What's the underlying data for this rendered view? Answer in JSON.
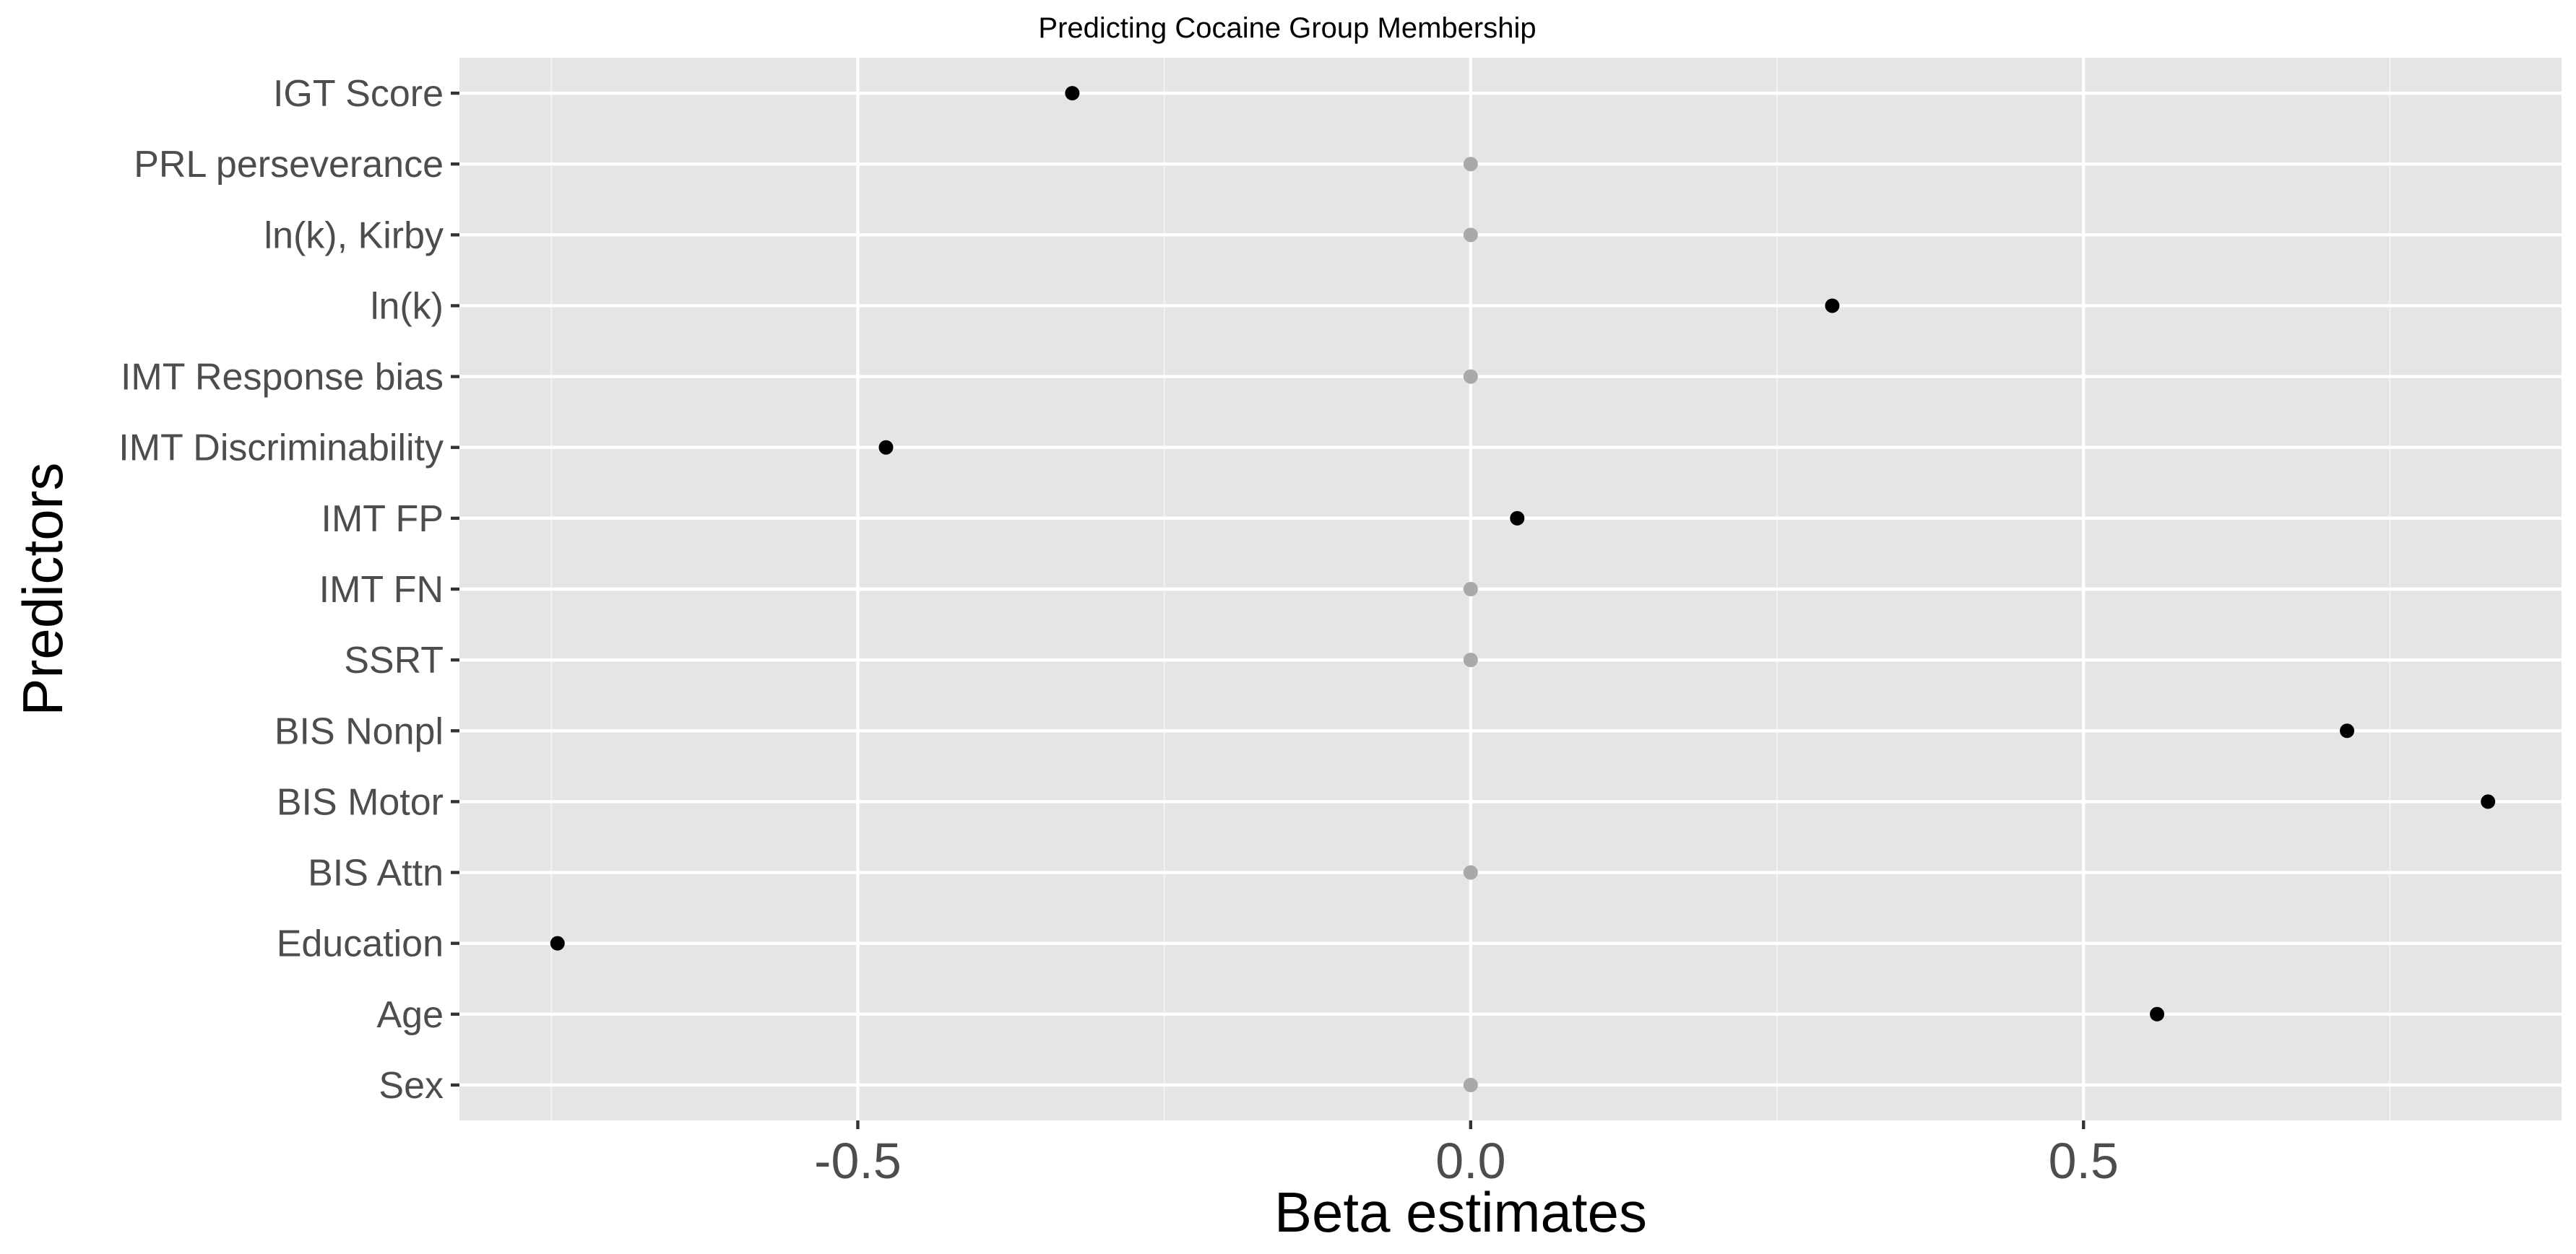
{
  "chart_data": {
    "type": "scatter",
    "title": "Predicting Cocaine Group Membership",
    "xlabel": "Beta estimates",
    "ylabel": "Predictors",
    "xlim": [
      -0.825,
      0.89
    ],
    "xticks": [
      -0.5,
      0.0,
      0.5
    ],
    "xtick_labels": [
      "-0.5",
      "0.0",
      "0.5"
    ],
    "grid": true,
    "legend": "none",
    "categories": [
      "IGT Score",
      "PRL perseverance",
      "ln(k), Kirby",
      "ln(k)",
      "IMT Response bias",
      "IMT Discriminability",
      "IMT FP",
      "IMT FN",
      "SSRT",
      "BIS Nonpl",
      "BIS Motor",
      "BIS Attn",
      "Education",
      "Age",
      "Sex"
    ],
    "values": [
      -0.325,
      0.0,
      0.0,
      0.295,
      0.0,
      -0.477,
      0.038,
      0.0,
      0.0,
      0.715,
      0.83,
      0.0,
      -0.745,
      0.56,
      0.0
    ],
    "point_colors": {
      "nonzero": "#000000",
      "zero": "#a9a9a9"
    }
  }
}
